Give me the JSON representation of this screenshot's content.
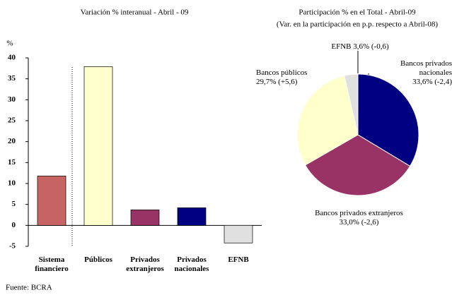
{
  "chart_data": [
    {
      "type": "bar",
      "title": "Variación % interanual - Abril - 09",
      "y_label": "%",
      "categories": [
        "Sistema financiero",
        "Públicos",
        "Privados extranjeros",
        "Privados nacionales",
        "EFNB"
      ],
      "values": [
        11.8,
        37.9,
        3.7,
        4.2,
        -4.2
      ],
      "colors": [
        "#c86464",
        "#ffffcc",
        "#993366",
        "#000080",
        "#e0e0e0"
      ],
      "ylim": [
        -5,
        40
      ],
      "yticks": [
        -5,
        0,
        5,
        10,
        15,
        20,
        25,
        30,
        35,
        40
      ]
    },
    {
      "type": "pie",
      "title": "Participación % en el Total - Abril-09",
      "subtitle": "(Var. en la participación en p.p. respecto a Abril-08)",
      "categories": [
        "Bancos privados nacionales",
        "Bancos privados extranjeros",
        "Bancos públicos",
        "EFNB"
      ],
      "values": [
        33.6,
        33.0,
        29.7,
        3.6
      ],
      "value_labels": [
        "33,6% (-2,4)",
        "33,0% (-2,6)",
        "29,7% (+5,6)",
        "3,6% (-0,6)"
      ],
      "colors": [
        "#000080",
        "#993366",
        "#ffffcc",
        "#e0e0e0"
      ]
    }
  ],
  "source": "Fuente: BCRA"
}
